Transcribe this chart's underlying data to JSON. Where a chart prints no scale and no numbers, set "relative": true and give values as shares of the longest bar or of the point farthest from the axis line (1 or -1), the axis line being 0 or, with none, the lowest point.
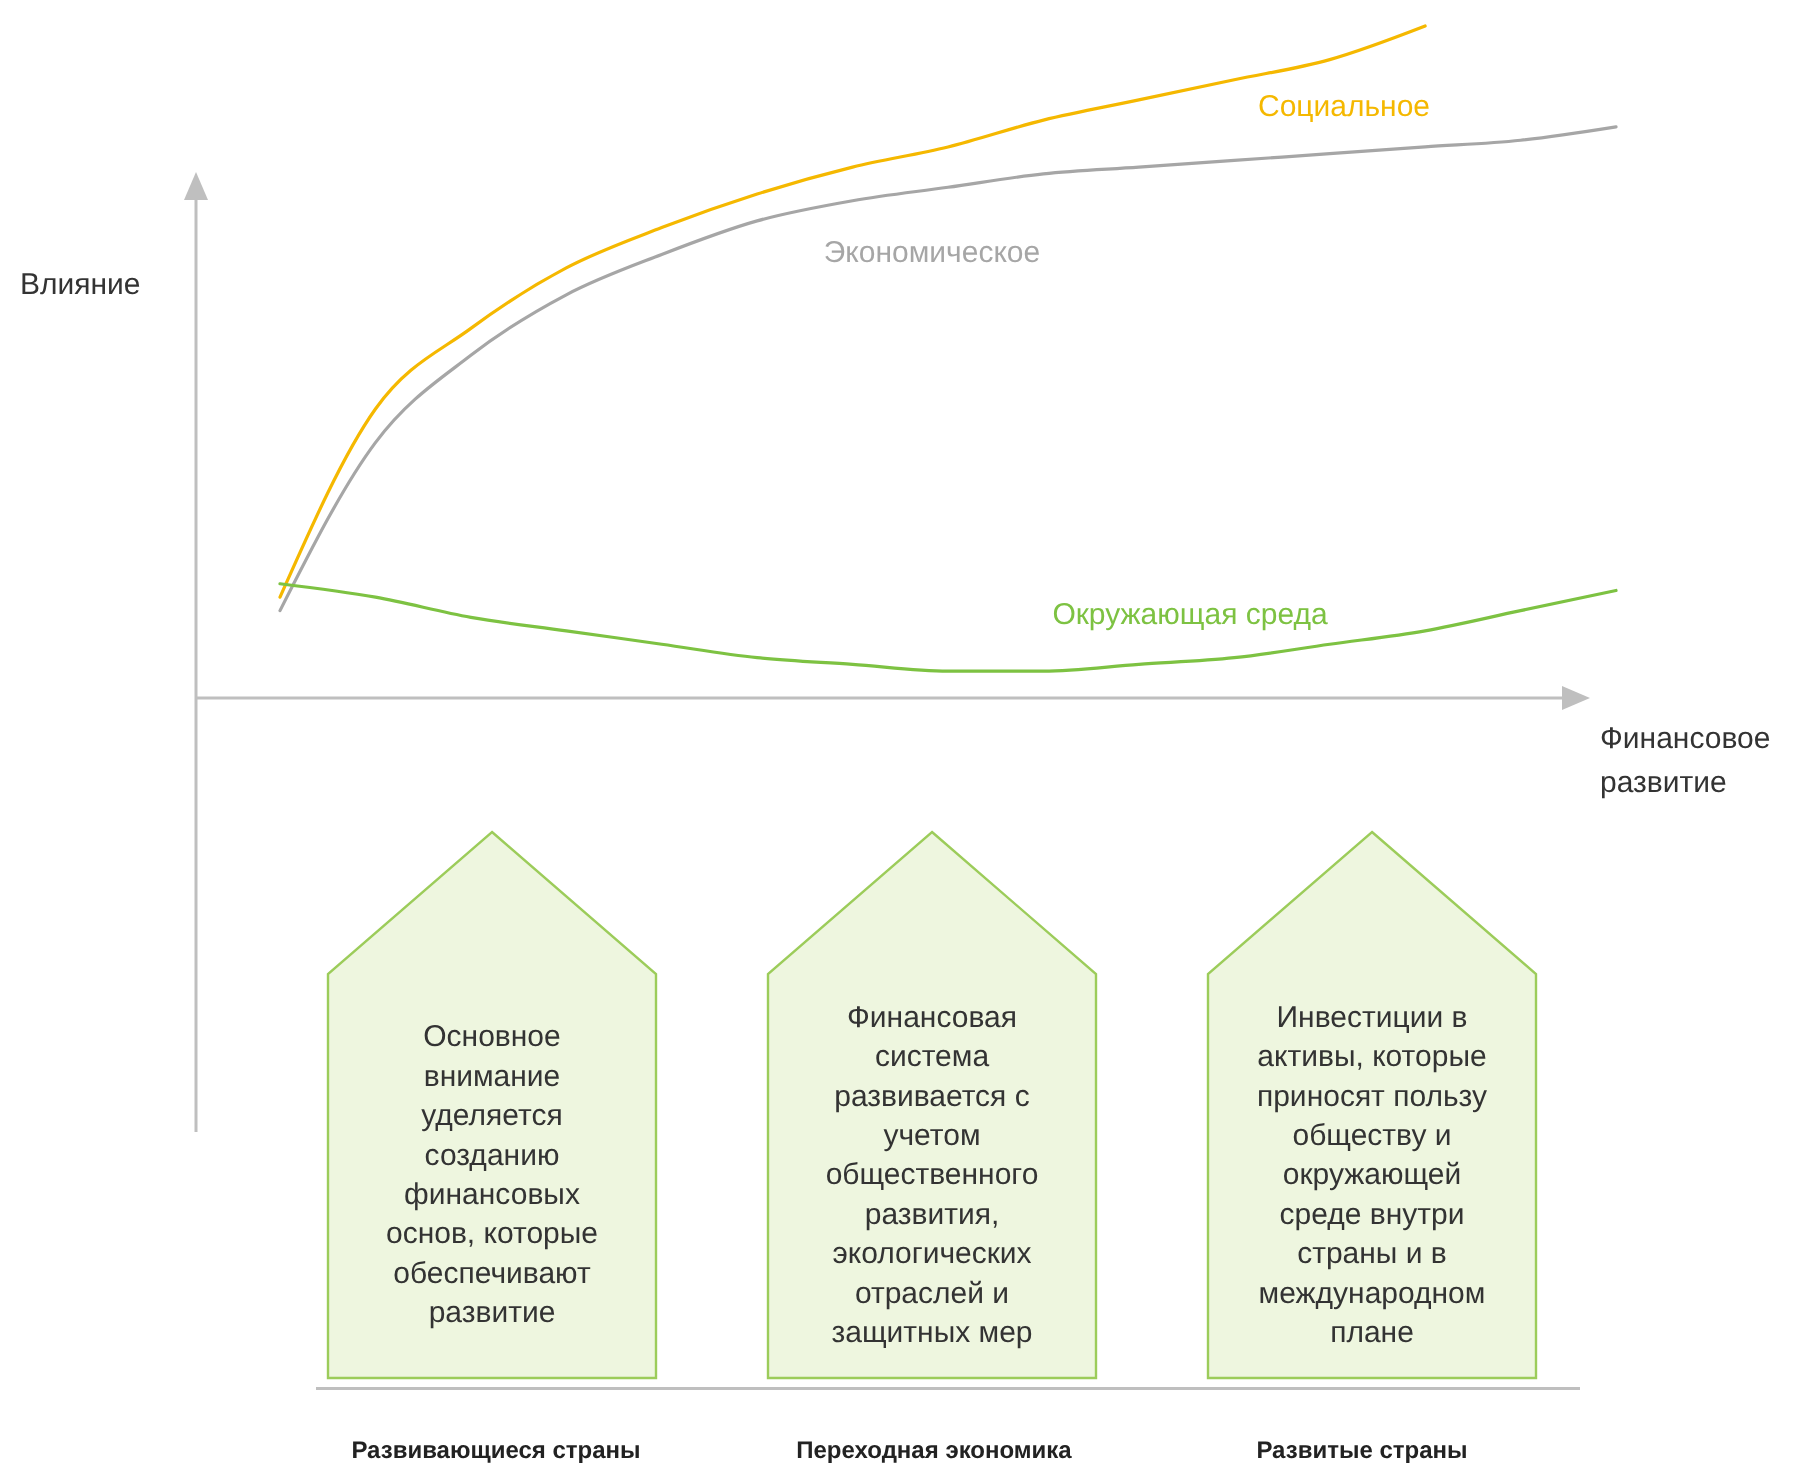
{
  "chart_data": {
    "type": "line",
    "relative": true,
    "xlabel": "Финансовое развитие",
    "ylabel": "Влияние",
    "categories": [
      null,
      null,
      null,
      null,
      null,
      null,
      null,
      null,
      null,
      null,
      null,
      null,
      null,
      null,
      null
    ],
    "series": [
      {
        "name": "Социальное",
        "color": "#f5b800",
        "values": [
          0.15,
          0.43,
          0.55,
          0.64,
          0.7,
          0.75,
          0.79,
          0.82,
          0.86,
          0.89,
          0.92,
          0.95,
          1.0,
          null,
          null
        ]
      },
      {
        "name": "Экономическое",
        "color": "#a6a6a6",
        "values": [
          0.13,
          0.38,
          0.51,
          0.6,
          0.66,
          0.71,
          0.74,
          0.76,
          0.78,
          0.79,
          0.8,
          0.81,
          0.82,
          0.83,
          0.85
        ]
      },
      {
        "name": "Окружающая среда",
        "color": "#7dc242",
        "values": [
          0.17,
          0.15,
          0.12,
          0.1,
          0.08,
          0.06,
          0.05,
          0.04,
          0.04,
          0.05,
          0.06,
          0.08,
          0.1,
          0.13,
          0.16
        ]
      }
    ],
    "annotations": [
      "Основное внимание уделяется созданию финансовых основ, которые обеспечивают развитие",
      "Финансовая система развивается с учетом общественного развития, экологических отраслей и защитных мер",
      "Инвестиции в активы, которые приносят пользу обществу и окружающей среде внутри страны и в международном плане",
      "Развивающиеся страны",
      "Переходная экономика",
      "Развитые страны"
    ]
  }
}
